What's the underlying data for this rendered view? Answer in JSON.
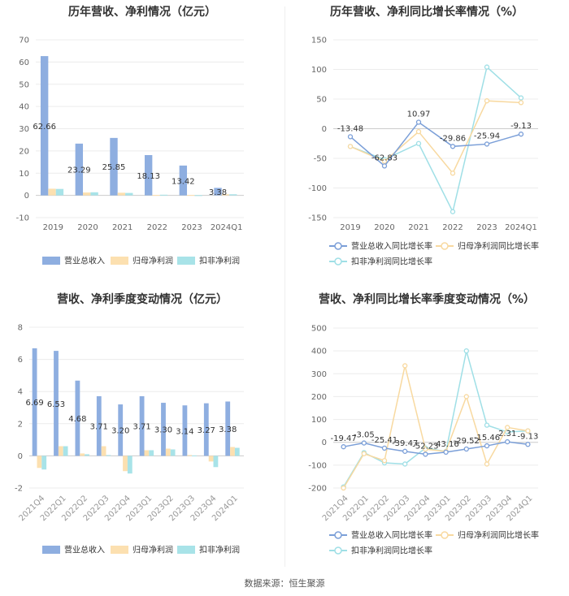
{
  "source": "数据来源：恒生聚源",
  "colors": {
    "revenue": "#8eaee0",
    "net": "#fce0b0",
    "deducted": "#a8e3e8",
    "revenue_line": "#7b9fd8",
    "net_line": "#f8d9a0",
    "deducted_line": "#9fdfe6"
  },
  "chart_data": [
    {
      "id": "annual-amounts",
      "type": "bar",
      "title": "历年营收、净利情况（亿元）",
      "categories": [
        "2019",
        "2020",
        "2021",
        "2022",
        "2023",
        "2024Q1"
      ],
      "ylim": [
        -10,
        70
      ],
      "yticks": [
        -10,
        0,
        10,
        20,
        30,
        40,
        50,
        60,
        70
      ],
      "series": [
        {
          "name": "营业总收入",
          "values": [
            62.66,
            23.29,
            25.85,
            18.13,
            13.42,
            3.38
          ],
          "labels": [
            "62.66",
            "23.29",
            "25.85",
            "18.13",
            "13.42",
            "3.38"
          ]
        },
        {
          "name": "归母净利润",
          "values": [
            3.0,
            1.3,
            1.2,
            0.2,
            0.2,
            0.5
          ]
        },
        {
          "name": "扣非净利润",
          "values": [
            2.9,
            1.4,
            1.1,
            0.3,
            0.1,
            0.5
          ]
        }
      ]
    },
    {
      "id": "annual-growth",
      "type": "line",
      "title": "历年营收、净利同比增长率情况（%）",
      "categories": [
        "2019",
        "2020",
        "2021",
        "2022",
        "2023",
        "2024Q1"
      ],
      "ylim": [
        -150,
        150
      ],
      "yticks": [
        -150,
        -100,
        -50,
        0,
        50,
        100,
        150
      ],
      "series": [
        {
          "name": "营业总收入同比增长率",
          "values": [
            -13.48,
            -62.83,
            10.97,
            -29.86,
            -25.94,
            -9.13
          ],
          "labels": [
            "-13.48",
            "-62.83",
            "10.97",
            "-29.86",
            "-25.94",
            "-9.13"
          ]
        },
        {
          "name": "归母净利润同比增长率",
          "values": [
            -30,
            -55,
            -5,
            -75,
            47,
            44
          ]
        },
        {
          "name": "扣非净利润同比增长率",
          "values": [
            -30,
            -52,
            -25,
            -140,
            104,
            52
          ]
        }
      ]
    },
    {
      "id": "quarterly-amounts",
      "type": "bar",
      "title": "营收、净利季度变动情况（亿元）",
      "categories": [
        "2021Q4",
        "2022Q1",
        "2022Q2",
        "2022Q3",
        "2022Q4",
        "2023Q1",
        "2023Q2",
        "2023Q3",
        "2023Q4",
        "2024Q1"
      ],
      "ylim": [
        -2,
        8
      ],
      "yticks": [
        -2,
        0,
        2,
        4,
        6,
        8
      ],
      "series": [
        {
          "name": "营业总收入",
          "values": [
            6.69,
            6.53,
            4.68,
            3.71,
            3.2,
            3.71,
            3.3,
            3.14,
            3.27,
            3.38
          ],
          "labels": [
            "6.69",
            "6.53",
            "4.68",
            "3.71",
            "3.20",
            "3.71",
            "3.30",
            "3.14",
            "3.27",
            "3.38"
          ]
        },
        {
          "name": "归母净利润",
          "values": [
            -0.75,
            0.6,
            0.15,
            0.6,
            -0.95,
            0.35,
            0.45,
            0.05,
            -0.35,
            0.55
          ]
        },
        {
          "name": "扣非净利润",
          "values": [
            -0.85,
            0.6,
            0.1,
            0.05,
            -1.1,
            0.35,
            0.4,
            0.02,
            -0.7,
            0.5
          ]
        }
      ]
    },
    {
      "id": "quarterly-growth",
      "type": "line",
      "title": "营收、净利同比增长率季度变动情况（%）",
      "categories": [
        "2021Q4",
        "2022Q1",
        "2022Q2",
        "2022Q3",
        "2022Q4",
        "2023Q1",
        "2023Q2",
        "2023Q3",
        "2023Q4",
        "2024Q1"
      ],
      "ylim": [
        -200,
        500
      ],
      "yticks": [
        -200,
        -100,
        0,
        100,
        200,
        300,
        400,
        500
      ],
      "series": [
        {
          "name": "营业总收入同比增长率",
          "values": [
            -19.47,
            -3.05,
            -25.41,
            -39.47,
            -52.23,
            -43.16,
            -29.52,
            -15.46,
            2.31,
            -9.13
          ],
          "labels": [
            "-19.47",
            "-3.05",
            "-25.41",
            "-39.47",
            "-52.23",
            "-43.16",
            "-29.52",
            "-15.46",
            "2.31",
            "-9.13"
          ]
        },
        {
          "name": "归母净利润同比增长率",
          "values": [
            -200,
            -50,
            -80,
            335,
            -30,
            -40,
            200,
            -95,
            65,
            50
          ]
        },
        {
          "name": "扣非净利润同比增长率",
          "values": [
            -195,
            -45,
            -90,
            -95,
            -25,
            -40,
            400,
            75,
            45,
            50
          ]
        }
      ]
    }
  ]
}
